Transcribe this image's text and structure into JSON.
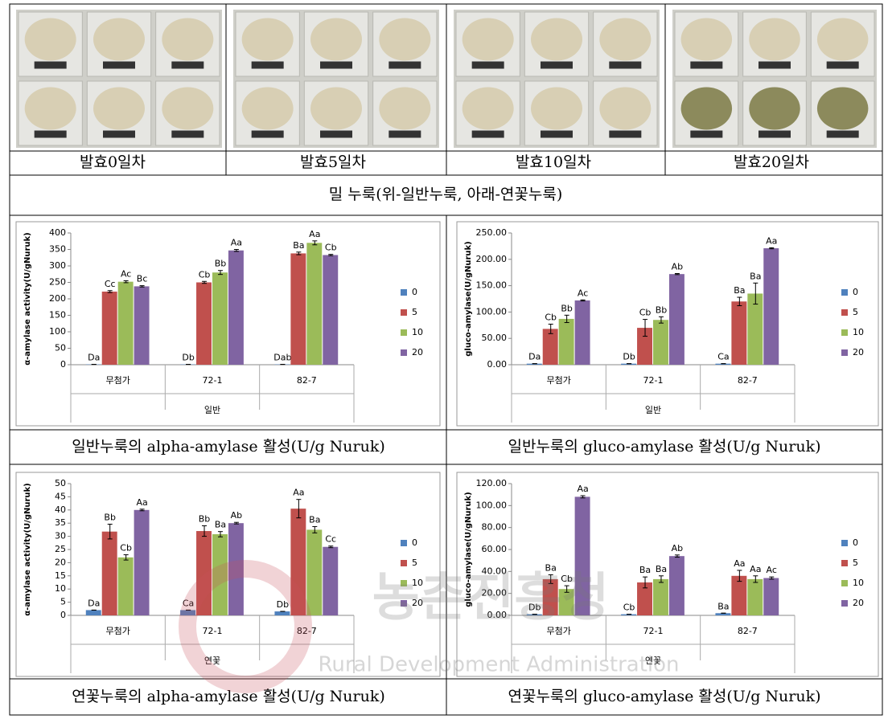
{
  "photo_labels": [
    "발효0일차",
    "발효5일차",
    "발효10일차",
    "발효20일차"
  ],
  "caption": "밀 누룩(위-일반누룩, 아래-연꽃누룩)",
  "chart_captions": [
    "일반누룩의 alpha-amylase 활성(U/g Nuruk)",
    "일반누룩의 gluco-amylase 활성(U/g Nuruk)",
    "연꽃누룩의 alpha-amylase 활성(U/g Nuruk)",
    "연꽃누룩의 gluco-amylase 활성(U/g Nuruk)"
  ],
  "watermark": {
    "korean": "농촌진흥청",
    "english": "Rural Development Administration"
  },
  "chart_data": [
    {
      "type": "bar",
      "y_label": "α-amylase activity(U/gNuruk)",
      "x_label": "일반",
      "categories": [
        "무첨가",
        "72-1",
        "82-7"
      ],
      "ylim": [
        0,
        400
      ],
      "yticks": [
        0,
        50,
        100,
        150,
        200,
        250,
        300,
        350,
        400
      ],
      "legend": "right",
      "grid": false,
      "series": [
        {
          "name": "0",
          "color": "#4f81bd",
          "values": [
            1,
            1,
            1
          ],
          "errors": [
            0,
            0,
            0
          ],
          "letters": [
            "Da",
            "Db",
            "Dab"
          ]
        },
        {
          "name": "5",
          "color": "#c0504d",
          "values": [
            222,
            250,
            338
          ],
          "errors": [
            3,
            3,
            4
          ],
          "letters": [
            "Cc",
            "Cb",
            "Ba"
          ]
        },
        {
          "name": "10",
          "color": "#9bbb59",
          "values": [
            252,
            280,
            370
          ],
          "errors": [
            3,
            6,
            6
          ],
          "letters": [
            "Ac",
            "Bb",
            "Aa"
          ]
        },
        {
          "name": "20",
          "color": "#8064a2",
          "values": [
            238,
            347,
            333
          ],
          "errors": [
            2,
            3,
            2
          ],
          "letters": [
            "Bc",
            "Aa",
            "Cb"
          ]
        }
      ]
    },
    {
      "type": "bar",
      "y_label": "gluco-amylase(U/gNuruk)",
      "x_label": "일반",
      "categories": [
        "무첨가",
        "72-1",
        "82-7"
      ],
      "ylim": [
        0,
        250
      ],
      "yticks": [
        {
          "value": 0,
          "label": "0.00"
        },
        {
          "value": 50,
          "label": "50.00"
        },
        {
          "value": 100,
          "label": "100.00"
        },
        {
          "value": 150,
          "label": "150.00"
        },
        {
          "value": 200,
          "label": "200.00"
        },
        {
          "value": 250,
          "label": "250.00"
        }
      ],
      "legend": "right",
      "grid": false,
      "series": [
        {
          "name": "0",
          "color": "#4f81bd",
          "values": [
            2,
            2,
            2
          ],
          "errors": [
            0,
            0,
            0
          ],
          "letters": [
            "Da",
            "Db",
            "Ca"
          ]
        },
        {
          "name": "5",
          "color": "#c0504d",
          "values": [
            68,
            70,
            120
          ],
          "errors": [
            9,
            16,
            8
          ],
          "letters": [
            "Cb",
            "Cb",
            "Ba"
          ]
        },
        {
          "name": "10",
          "color": "#9bbb59",
          "values": [
            87,
            85,
            135
          ],
          "errors": [
            7,
            6,
            20
          ],
          "letters": [
            "Bb",
            "Bb",
            "Ba"
          ]
        },
        {
          "name": "20",
          "color": "#8064a2",
          "values": [
            122,
            172,
            221
          ],
          "errors": [
            1,
            1,
            1
          ],
          "letters": [
            "Ac",
            "Ab",
            "Aa"
          ]
        }
      ]
    },
    {
      "type": "bar",
      "y_label": "α-amylase activity(U/gNuruk)",
      "x_label": "연꽃",
      "categories": [
        "무첨가",
        "72-1",
        "82-7"
      ],
      "ylim": [
        0,
        50
      ],
      "yticks": [
        0,
        5,
        10,
        15,
        20,
        25,
        30,
        35,
        40,
        45,
        50
      ],
      "legend": "right",
      "grid": false,
      "series": [
        {
          "name": "0",
          "color": "#4f81bd",
          "values": [
            2,
            2,
            1.5
          ],
          "errors": [
            0,
            0,
            0
          ],
          "letters": [
            "Da",
            "Ca",
            "Db"
          ]
        },
        {
          "name": "5",
          "color": "#c0504d",
          "values": [
            31.8,
            32,
            40.5
          ],
          "errors": [
            2.8,
            2,
            3.5
          ],
          "letters": [
            "Bb",
            "Bb",
            "Aa"
          ]
        },
        {
          "name": "10",
          "color": "#9bbb59",
          "values": [
            22,
            30.8,
            32.5
          ],
          "errors": [
            1,
            1,
            1.2
          ],
          "letters": [
            "Cb",
            "Ba",
            "Ba"
          ]
        },
        {
          "name": "20",
          "color": "#8064a2",
          "values": [
            40,
            35,
            26
          ],
          "errors": [
            0.3,
            0.3,
            0.3
          ],
          "letters": [
            "Aa",
            "Ab",
            "Cc"
          ]
        }
      ]
    },
    {
      "type": "bar",
      "y_label": "gluco-amylase(U/gNuruk)",
      "x_label": "연꽃",
      "categories": [
        "무첨가",
        "72-1",
        "82-7"
      ],
      "ylim": [
        0,
        120
      ],
      "yticks": [
        {
          "value": 0,
          "label": "0.00"
        },
        {
          "value": 20,
          "label": "20.00"
        },
        {
          "value": 40,
          "label": "40.00"
        },
        {
          "value": 60,
          "label": "60.00"
        },
        {
          "value": 80,
          "label": "80.00"
        },
        {
          "value": 100,
          "label": "100.00"
        },
        {
          "value": 120,
          "label": "120.00"
        }
      ],
      "legend": "right",
      "grid": false,
      "series": [
        {
          "name": "0",
          "color": "#4f81bd",
          "values": [
            1,
            1,
            2
          ],
          "errors": [
            0,
            0,
            0
          ],
          "letters": [
            "Db",
            "Cb",
            "Ba"
          ]
        },
        {
          "name": "5",
          "color": "#c0504d",
          "values": [
            33,
            30,
            36
          ],
          "errors": [
            4,
            5,
            5
          ],
          "letters": [
            "Ba",
            "Ba",
            "Aa"
          ]
        },
        {
          "name": "10",
          "color": "#9bbb59",
          "values": [
            24,
            33,
            33
          ],
          "errors": [
            3,
            3,
            3
          ],
          "letters": [
            "Cb",
            "Ba",
            "Aa"
          ]
        },
        {
          "name": "20",
          "color": "#8064a2",
          "values": [
            108,
            54,
            34
          ],
          "errors": [
            1,
            1,
            1
          ],
          "letters": [
            "Aa",
            "Ab",
            "Ac"
          ]
        }
      ]
    }
  ]
}
